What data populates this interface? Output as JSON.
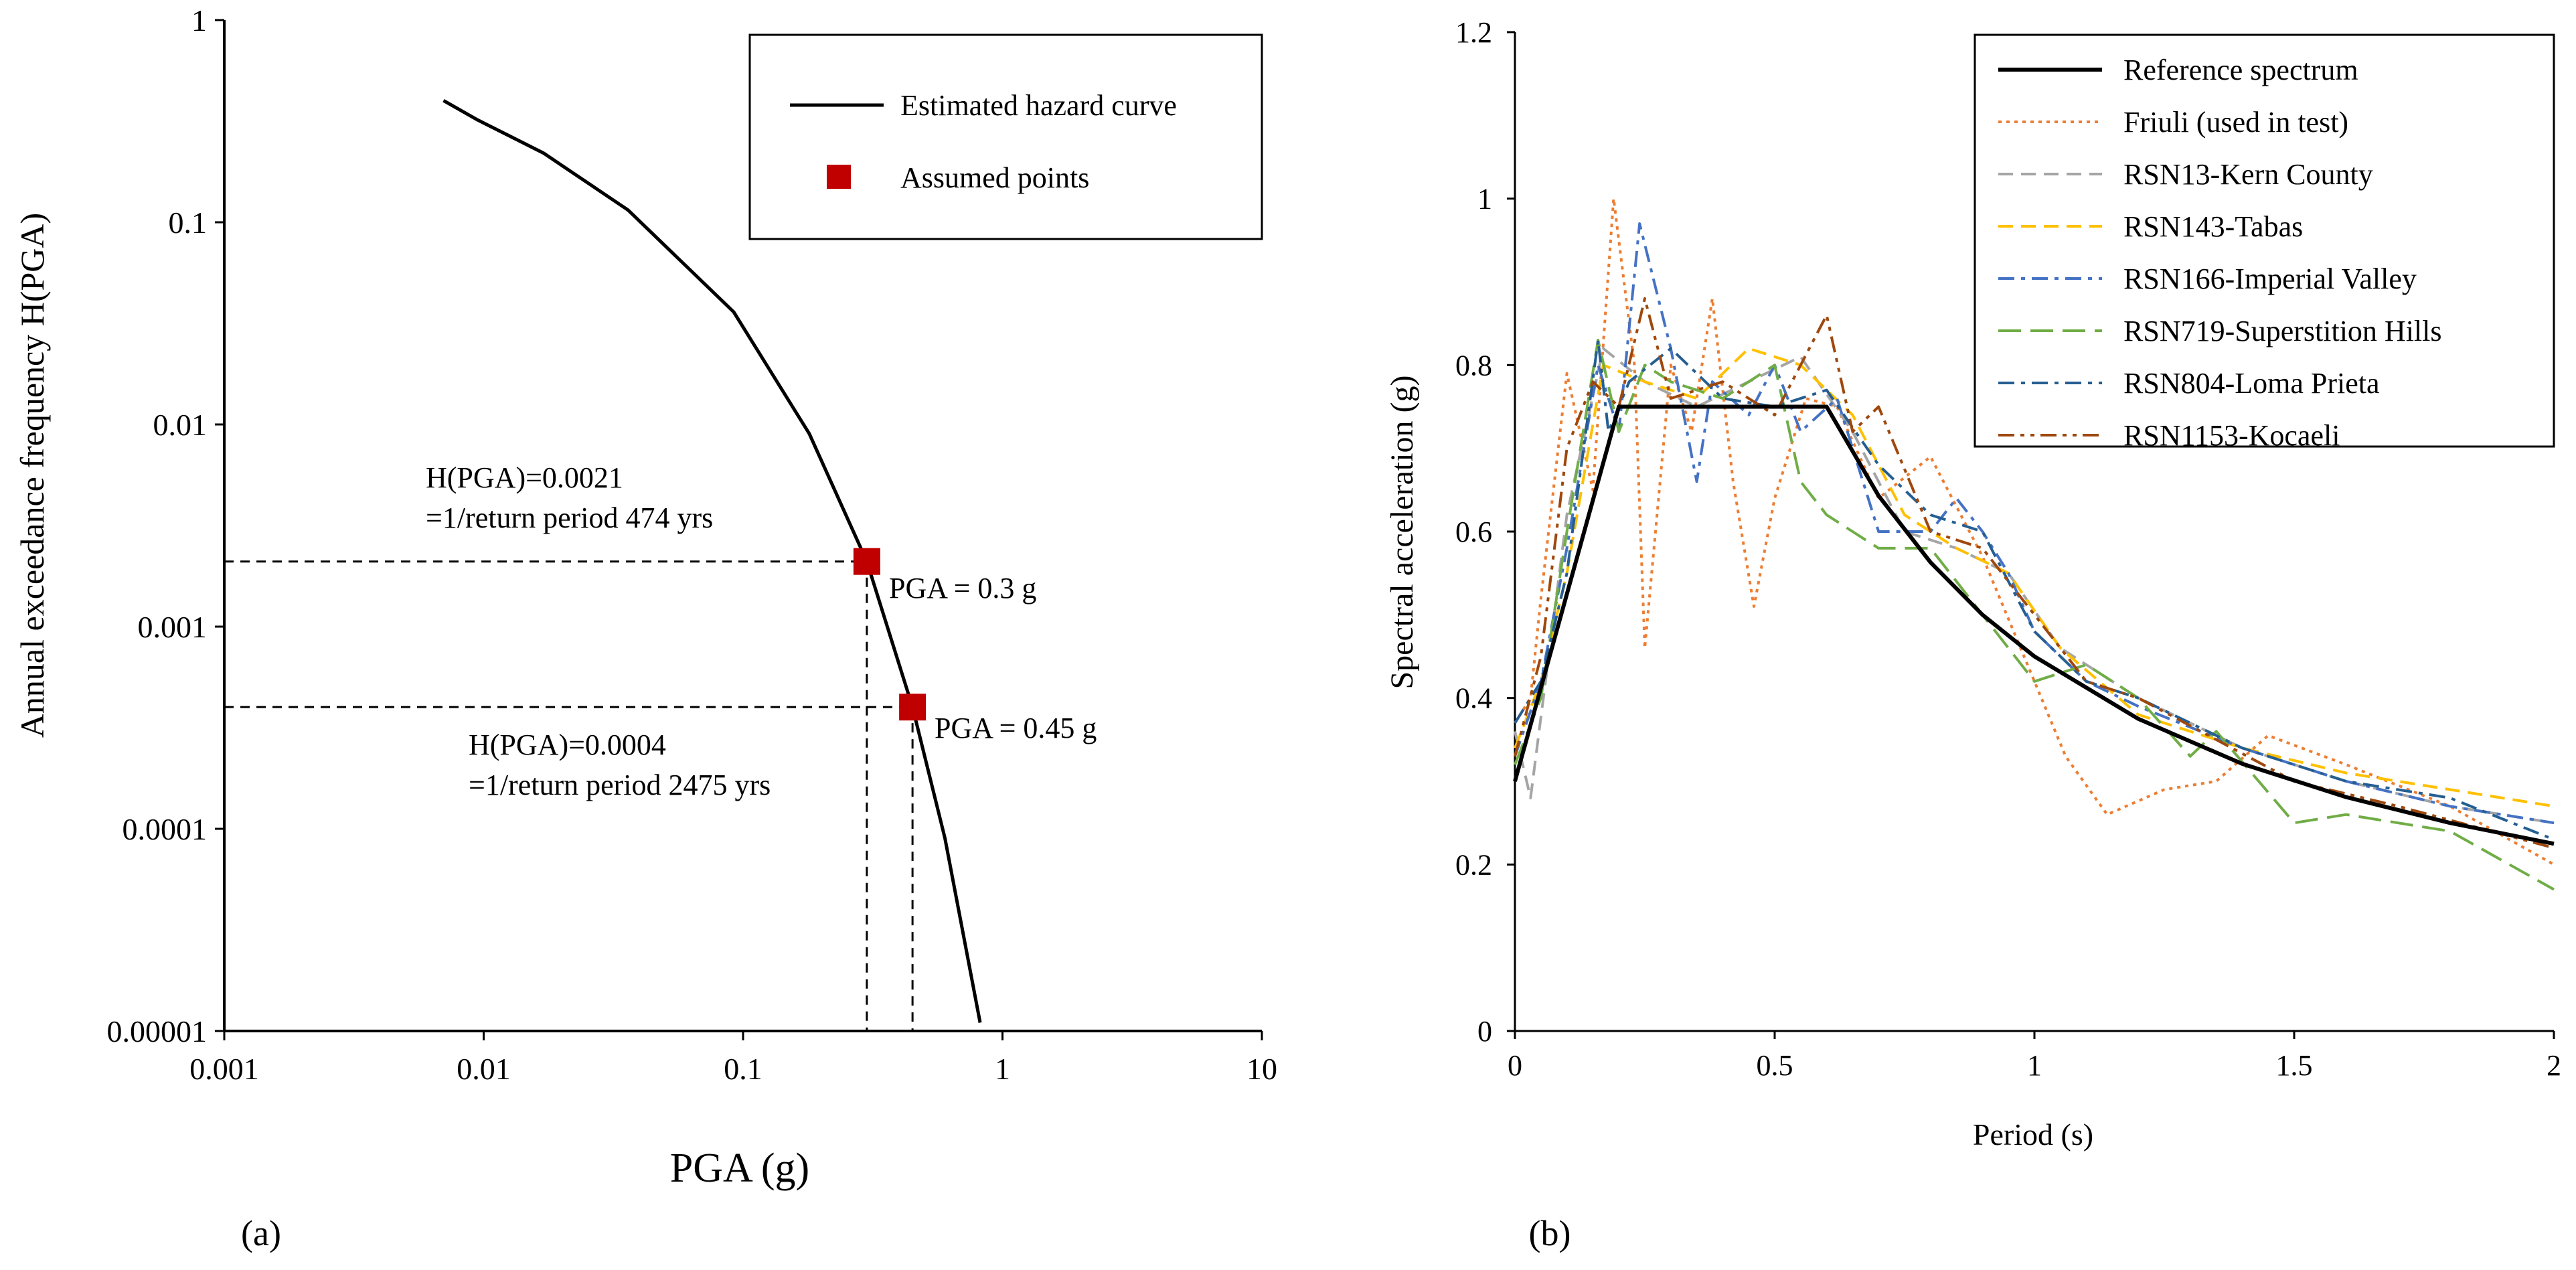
{
  "chart_data": [
    {
      "type": "line",
      "panel_label": "(a)",
      "xlabel": "PGA (g)",
      "ylabel": "Annual exceedance frequency H(PGA)",
      "xscale": "log",
      "yscale": "log",
      "xlim": [
        0.001,
        10
      ],
      "ylim": [
        1e-05,
        1
      ],
      "xtick_labels": [
        "0.001",
        "0.01",
        "0.1",
        "1",
        "10"
      ],
      "ytick_labels": [
        "1",
        "0.1",
        "0.01",
        "0.001",
        "0.0001",
        "0.00001"
      ],
      "series": [
        {
          "name": "Estimated hazard curve",
          "style": "solid",
          "color": "#000000",
          "x": [
            0.007,
            0.0095,
            0.017,
            0.036,
            0.092,
            0.18,
            0.3,
            0.45,
            0.6,
            0.82
          ],
          "y": [
            0.4,
            0.32,
            0.22,
            0.115,
            0.036,
            0.009,
            0.0021,
            0.0004,
            9e-05,
            1.1e-05
          ]
        },
        {
          "name": "Assumed points",
          "style": "marker",
          "color": "#c00000",
          "x": [
            0.3,
            0.45
          ],
          "y": [
            0.0021,
            0.0004
          ]
        }
      ],
      "annotations": [
        {
          "lines": [
            "H(PGA)=0.0021",
            "=1/return period 474 yrs"
          ]
        },
        {
          "lines": [
            "H(PGA)=0.0004",
            "=1/return period 2475 yrs"
          ]
        },
        {
          "text": "PGA = 0.3 g"
        },
        {
          "text": "PGA = 0.45 g"
        }
      ]
    },
    {
      "type": "line",
      "panel_label": "(b)",
      "xlabel": "Period (s)",
      "ylabel": "Spectral acceleration (g)",
      "xlim": [
        0,
        2
      ],
      "ylim": [
        0,
        1.2
      ],
      "xtick_labels": [
        "0",
        "0.5",
        "1",
        "1.5",
        "2"
      ],
      "ytick_labels": [
        "0",
        "0.2",
        "0.4",
        "0.6",
        "0.8",
        "1",
        "1.2"
      ],
      "legend_position": "top-right",
      "series": [
        {
          "name": "Reference spectrum",
          "color": "#000000",
          "dash": "solid",
          "x": [
            0,
            0.2,
            0.6,
            0.7,
            0.8,
            0.9,
            1.0,
            1.2,
            1.4,
            1.6,
            1.8,
            2.0
          ],
          "y": [
            0.3,
            0.75,
            0.75,
            0.643,
            0.563,
            0.5,
            0.45,
            0.375,
            0.321,
            0.281,
            0.25,
            0.225
          ]
        },
        {
          "name": "Friuli (used in test)",
          "color": "#ed7d31",
          "dash": "dot",
          "x": [
            0,
            0.03,
            0.05,
            0.1,
            0.15,
            0.19,
            0.23,
            0.25,
            0.3,
            0.34,
            0.38,
            0.42,
            0.46,
            0.5,
            0.56,
            0.62,
            0.7,
            0.8,
            0.9,
            1.0,
            1.06,
            1.14,
            1.25,
            1.35,
            1.45,
            1.6,
            1.8,
            2.0
          ],
          "y": [
            0.37,
            0.4,
            0.52,
            0.79,
            0.65,
            1.0,
            0.8,
            0.46,
            0.8,
            0.72,
            0.88,
            0.66,
            0.51,
            0.64,
            0.76,
            0.75,
            0.64,
            0.69,
            0.57,
            0.42,
            0.33,
            0.26,
            0.29,
            0.3,
            0.355,
            0.32,
            0.27,
            0.2
          ]
        },
        {
          "name": "RSN13-Kern County",
          "color": "#a5a5a5",
          "dash": "dash",
          "x": [
            0,
            0.03,
            0.1,
            0.17,
            0.25,
            0.35,
            0.45,
            0.55,
            0.65,
            0.75,
            0.85,
            0.95,
            1.05,
            1.2,
            1.4,
            1.6,
            1.8,
            2.0
          ],
          "y": [
            0.36,
            0.28,
            0.62,
            0.82,
            0.78,
            0.75,
            0.78,
            0.81,
            0.72,
            0.6,
            0.58,
            0.55,
            0.46,
            0.4,
            0.34,
            0.3,
            0.27,
            0.25
          ]
        },
        {
          "name": "RSN143-Tabas",
          "color": "#ffc000",
          "dash": "dash",
          "x": [
            0,
            0.05,
            0.1,
            0.17,
            0.25,
            0.35,
            0.45,
            0.55,
            0.65,
            0.75,
            0.85,
            0.95,
            1.05,
            1.2,
            1.4,
            1.6,
            1.8,
            2.0
          ],
          "y": [
            0.34,
            0.42,
            0.55,
            0.8,
            0.78,
            0.76,
            0.82,
            0.8,
            0.74,
            0.62,
            0.58,
            0.55,
            0.46,
            0.38,
            0.34,
            0.31,
            0.29,
            0.27
          ]
        },
        {
          "name": "RSN166-Imperial Valley",
          "color": "#4472c4",
          "dash": "dashdot",
          "x": [
            0,
            0.05,
            0.1,
            0.16,
            0.2,
            0.24,
            0.3,
            0.35,
            0.38,
            0.45,
            0.5,
            0.55,
            0.62,
            0.7,
            0.8,
            0.85,
            0.9,
            0.95,
            1.0,
            1.1,
            1.2,
            1.4,
            1.6,
            1.8,
            2.0
          ],
          "y": [
            0.33,
            0.42,
            0.58,
            0.8,
            0.72,
            0.97,
            0.82,
            0.66,
            0.78,
            0.74,
            0.8,
            0.72,
            0.76,
            0.6,
            0.6,
            0.64,
            0.6,
            0.55,
            0.48,
            0.42,
            0.39,
            0.34,
            0.3,
            0.27,
            0.25
          ]
        },
        {
          "name": "RSN719-Superstition Hills",
          "color": "#70ad47",
          "dash": "longdash",
          "x": [
            0,
            0.05,
            0.1,
            0.16,
            0.2,
            0.25,
            0.3,
            0.4,
            0.5,
            0.55,
            0.6,
            0.65,
            0.7,
            0.8,
            0.9,
            0.95,
            1.0,
            1.1,
            1.2,
            1.3,
            1.35,
            1.5,
            1.6,
            1.8,
            2.0
          ],
          "y": [
            0.32,
            0.4,
            0.6,
            0.83,
            0.72,
            0.8,
            0.78,
            0.76,
            0.8,
            0.66,
            0.62,
            0.6,
            0.58,
            0.58,
            0.5,
            0.46,
            0.42,
            0.44,
            0.4,
            0.33,
            0.36,
            0.25,
            0.26,
            0.24,
            0.17
          ]
        },
        {
          "name": "RSN804-Loma Prieta",
          "color": "#255e91",
          "dash": "dashdot",
          "x": [
            0,
            0.05,
            0.1,
            0.16,
            0.18,
            0.22,
            0.3,
            0.4,
            0.5,
            0.6,
            0.7,
            0.8,
            0.9,
            1.0,
            1.1,
            1.2,
            1.4,
            1.6,
            1.8,
            2.0
          ],
          "y": [
            0.37,
            0.42,
            0.55,
            0.83,
            0.72,
            0.78,
            0.82,
            0.76,
            0.75,
            0.77,
            0.68,
            0.62,
            0.6,
            0.48,
            0.42,
            0.4,
            0.34,
            0.3,
            0.28,
            0.23
          ]
        },
        {
          "name": "RSN1153-Kocaeli",
          "color": "#9e480e",
          "dash": "dashdotdot",
          "x": [
            0,
            0.05,
            0.1,
            0.15,
            0.2,
            0.25,
            0.3,
            0.4,
            0.5,
            0.55,
            0.6,
            0.65,
            0.7,
            0.8,
            0.9,
            1.0,
            1.1,
            1.2,
            1.35,
            1.5,
            1.7,
            2.0
          ],
          "y": [
            0.33,
            0.45,
            0.7,
            0.78,
            0.75,
            0.88,
            0.76,
            0.78,
            0.74,
            0.8,
            0.86,
            0.72,
            0.75,
            0.6,
            0.58,
            0.5,
            0.42,
            0.4,
            0.35,
            0.3,
            0.27,
            0.22
          ]
        }
      ]
    }
  ]
}
